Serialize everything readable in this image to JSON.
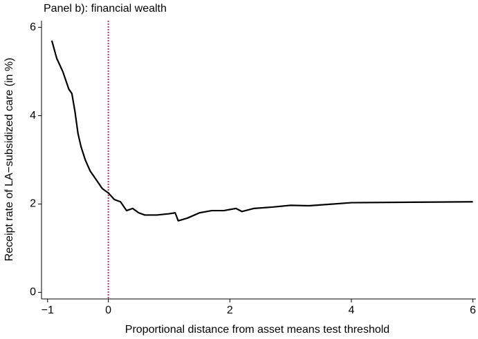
{
  "chart_data": {
    "type": "line",
    "title": "Panel b): financial wealth",
    "xlabel": "Proportional distance from asset means test threshold",
    "ylabel": "Receipt rate of LA−subsidized care (in %)",
    "x": [
      -0.93,
      -0.85,
      -0.75,
      -0.65,
      -0.6,
      -0.55,
      -0.5,
      -0.45,
      -0.38,
      -0.3,
      -0.2,
      -0.1,
      0,
      0.1,
      0.2,
      0.3,
      0.4,
      0.5,
      0.6,
      0.8,
      1.0,
      1.1,
      1.15,
      1.3,
      1.5,
      1.7,
      1.9,
      2.1,
      2.2,
      2.4,
      2.7,
      3.0,
      3.3,
      3.7,
      4.0,
      5.0,
      6.0
    ],
    "series": [
      {
        "color": "#000000",
        "values": [
          5.7,
          5.3,
          5.0,
          4.6,
          4.5,
          4.1,
          3.6,
          3.3,
          3.0,
          2.75,
          2.55,
          2.35,
          2.25,
          2.1,
          2.05,
          1.85,
          1.9,
          1.8,
          1.75,
          1.75,
          1.78,
          1.8,
          1.62,
          1.68,
          1.8,
          1.85,
          1.85,
          1.9,
          1.83,
          1.9,
          1.93,
          1.97,
          1.96,
          2.0,
          2.03,
          2.04,
          2.05
        ]
      }
    ],
    "reference_line": {
      "x": 0,
      "color": "#c0305a",
      "style": "dashed"
    },
    "xlim": [
      -1.1,
      6.05
    ],
    "ylim": [
      -0.15,
      6.15
    ],
    "xticks": [
      {
        "value": -1,
        "label": "−1"
      },
      0,
      2,
      4,
      6
    ],
    "yticks": [
      0,
      2,
      4,
      6
    ],
    "grid": false
  }
}
